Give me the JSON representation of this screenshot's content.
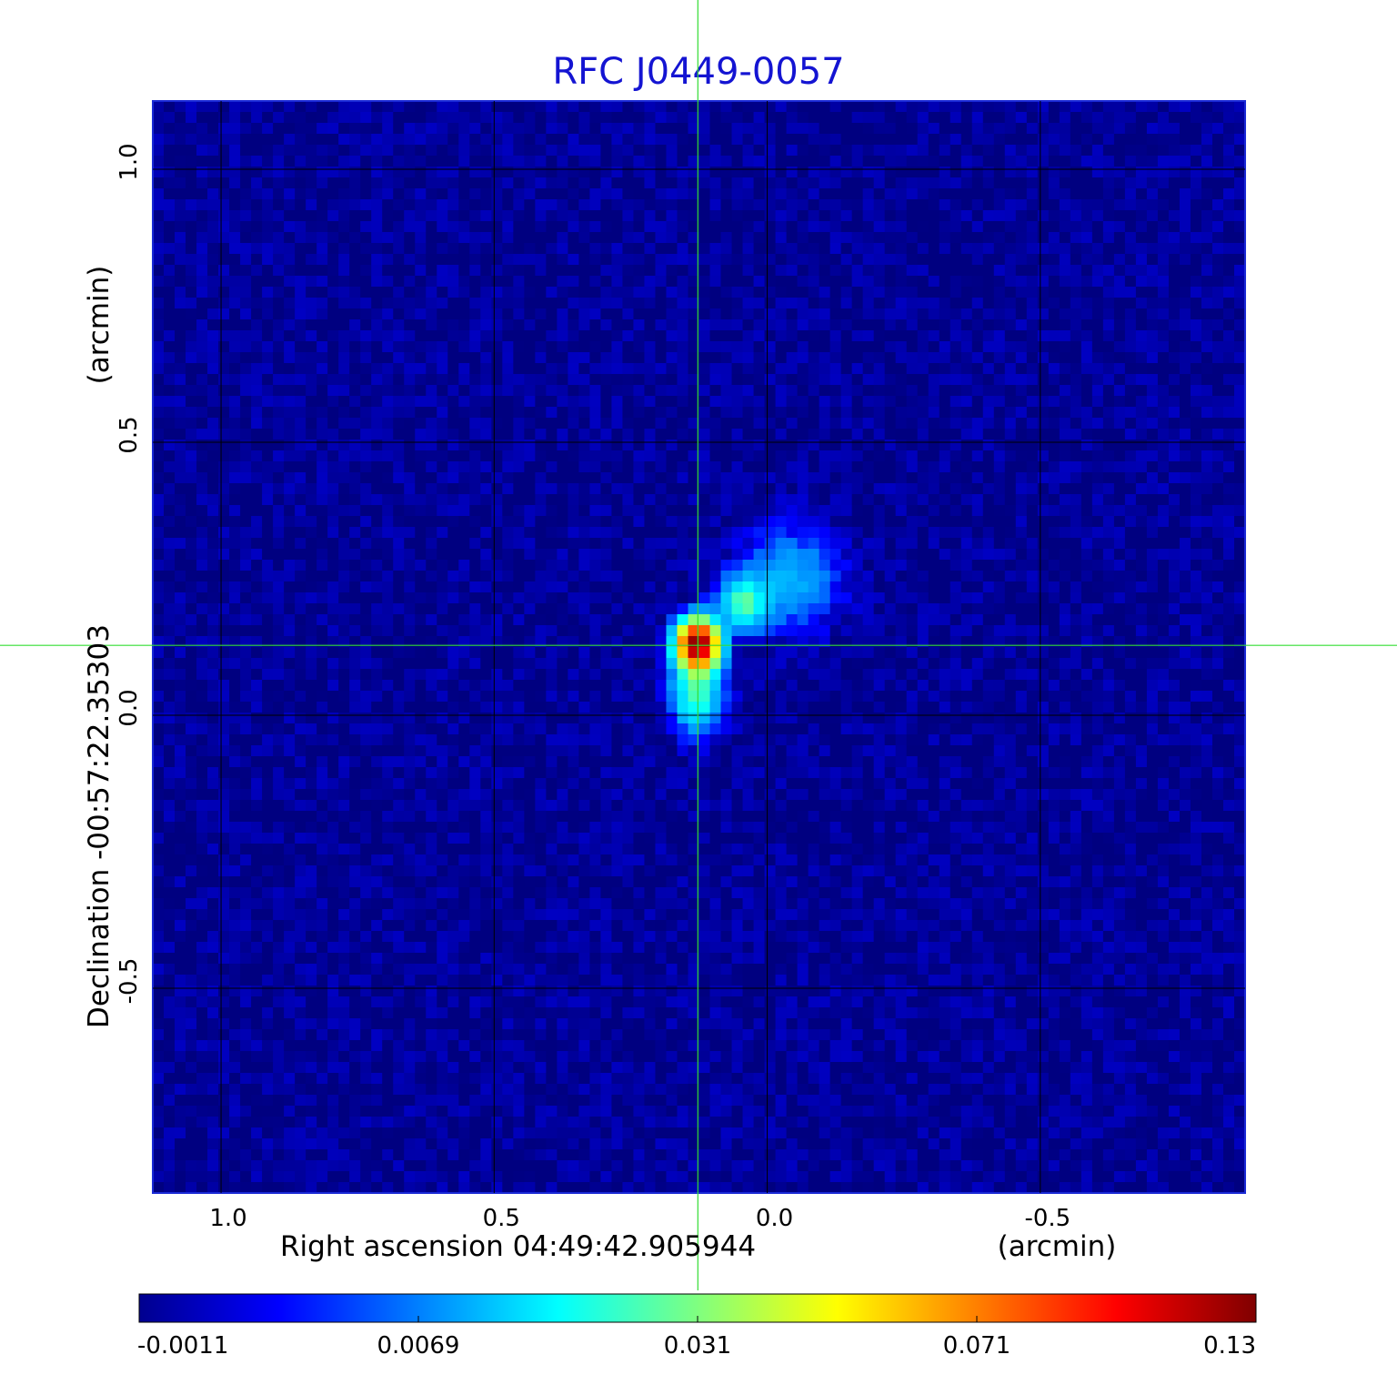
{
  "chart_data": {
    "type": "heatmap",
    "title": "RFC J0449-0057",
    "xlabel": "Right ascension  04:49:42.905944",
    "xunit": "(arcmin)",
    "ylabel": "Declination  -00:57:22.35303",
    "yunit": "(arcmin)",
    "xlim": [
      1.125,
      -0.875
    ],
    "ylim": [
      -0.875,
      1.125
    ],
    "x_reversed": true,
    "grid": true,
    "x_ticks": [
      {
        "value": 1.0,
        "label": "1.0"
      },
      {
        "value": 0.5,
        "label": "0.5"
      },
      {
        "value": 0.0,
        "label": "0.0"
      },
      {
        "value": -0.5,
        "label": "-0.5"
      }
    ],
    "y_ticks": [
      {
        "value": 1.0,
        "label": "1.0"
      },
      {
        "value": 0.5,
        "label": "0.5"
      },
      {
        "value": 0.0,
        "label": "0.0"
      },
      {
        "value": -0.5,
        "label": "-0.5"
      }
    ],
    "crosshair": {
      "x": 0.127,
      "y": 0.128,
      "color": "#33dd33"
    },
    "colorscale": "jet",
    "colorbar": {
      "min": -0.0011,
      "max": 0.13,
      "ticks": [
        {
          "fraction": 0.0,
          "label": "-0.0011"
        },
        {
          "fraction": 0.25,
          "label": "0.0069"
        },
        {
          "fraction": 0.5,
          "label": "0.031"
        },
        {
          "fraction": 0.75,
          "label": "0.071"
        },
        {
          "fraction": 1.0,
          "label": "0.13"
        }
      ]
    },
    "components": [
      {
        "x": 0.127,
        "y": 0.13,
        "peak": 0.13,
        "sigma_x": 0.024,
        "sigma_y": 0.028
      },
      {
        "x": 0.13,
        "y": 0.04,
        "peak": 0.025,
        "sigma_x": 0.03,
        "sigma_y": 0.045
      },
      {
        "x": 0.045,
        "y": 0.205,
        "peak": 0.025,
        "sigma_x": 0.028,
        "sigma_y": 0.03
      },
      {
        "x": -0.04,
        "y": 0.25,
        "peak": 0.012,
        "sigma_x": 0.06,
        "sigma_y": 0.06
      }
    ],
    "background_level": -0.0005,
    "noise_level": 0.0015
  }
}
